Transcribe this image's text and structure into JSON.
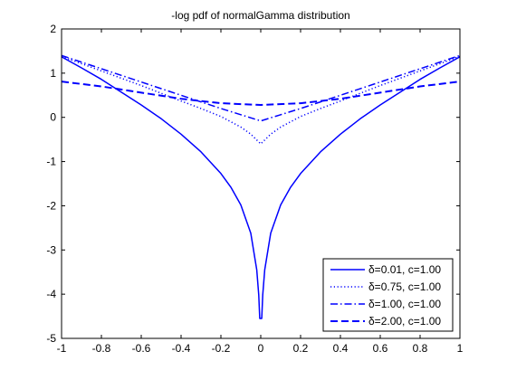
{
  "chart_data": {
    "type": "line",
    "title": "-log pdf of normalGamma distribution",
    "xlabel": "",
    "ylabel": "",
    "xlim": [
      -1,
      1
    ],
    "ylim": [
      -5,
      2
    ],
    "xticks": [
      "-1",
      "-0.8",
      "-0.6",
      "-0.4",
      "-0.2",
      "0",
      "0.2",
      "0.4",
      "0.6",
      "0.8",
      "1"
    ],
    "yticks": [
      "2",
      "1",
      "0",
      "-1",
      "-2",
      "-3",
      "-4",
      "-5"
    ],
    "xtick_values": [
      -1,
      -0.8,
      -0.6,
      -0.4,
      -0.2,
      0,
      0.2,
      0.4,
      0.6,
      0.8,
      1
    ],
    "ytick_values": [
      2,
      1,
      0,
      -1,
      -2,
      -3,
      -4,
      -5
    ],
    "grid": false,
    "legend_position": "bottom-right",
    "color": "#0000ff",
    "series": [
      {
        "name": "δ=0.01, c=1.00",
        "style": "solid",
        "x": [
          -1,
          -0.9,
          -0.8,
          -0.7,
          -0.6,
          -0.5,
          -0.4,
          -0.3,
          -0.2,
          -0.15,
          -0.1,
          -0.05,
          -0.02,
          -0.01,
          -0.005,
          0.005,
          0.01,
          0.02,
          0.05,
          0.1,
          0.15,
          0.2,
          0.3,
          0.4,
          0.5,
          0.6,
          0.7,
          0.8,
          0.9,
          1
        ],
        "y": [
          1.37,
          1.12,
          0.86,
          0.57,
          0.28,
          -0.03,
          -0.38,
          -0.78,
          -1.27,
          -1.58,
          -1.98,
          -2.62,
          -3.45,
          -4.02,
          -4.55,
          -4.55,
          -4.02,
          -3.45,
          -2.62,
          -1.98,
          -1.58,
          -1.27,
          -0.78,
          -0.38,
          -0.03,
          0.28,
          0.57,
          0.86,
          1.12,
          1.37
        ]
      },
      {
        "name": "δ=0.75, c=1.00",
        "style": "dotted",
        "x": [
          -1,
          -0.8,
          -0.6,
          -0.4,
          -0.3,
          -0.2,
          -0.1,
          -0.05,
          0,
          0.05,
          0.1,
          0.2,
          0.3,
          0.4,
          0.6,
          0.8,
          1
        ],
        "y": [
          1.38,
          1.05,
          0.72,
          0.37,
          0.2,
          0.02,
          -0.22,
          -0.38,
          -0.6,
          -0.38,
          -0.22,
          0.02,
          0.2,
          0.37,
          0.72,
          1.05,
          1.38
        ]
      },
      {
        "name": "δ=1.00, c=1.00",
        "style": "dashdot",
        "x": [
          -1,
          -0.8,
          -0.6,
          -0.4,
          -0.3,
          -0.2,
          -0.1,
          0,
          0.1,
          0.2,
          0.3,
          0.4,
          0.6,
          0.8,
          1
        ],
        "y": [
          1.4,
          1.1,
          0.8,
          0.5,
          0.35,
          0.2,
          0.06,
          -0.08,
          0.06,
          0.2,
          0.35,
          0.5,
          0.8,
          1.1,
          1.4
        ]
      },
      {
        "name": "δ=2.00, c=1.00",
        "style": "dashed",
        "x": [
          -1,
          -0.8,
          -0.6,
          -0.4,
          -0.2,
          0,
          0.2,
          0.4,
          0.6,
          0.8,
          1
        ],
        "y": [
          0.81,
          0.7,
          0.56,
          0.42,
          0.32,
          0.28,
          0.32,
          0.42,
          0.56,
          0.7,
          0.81
        ]
      }
    ]
  }
}
